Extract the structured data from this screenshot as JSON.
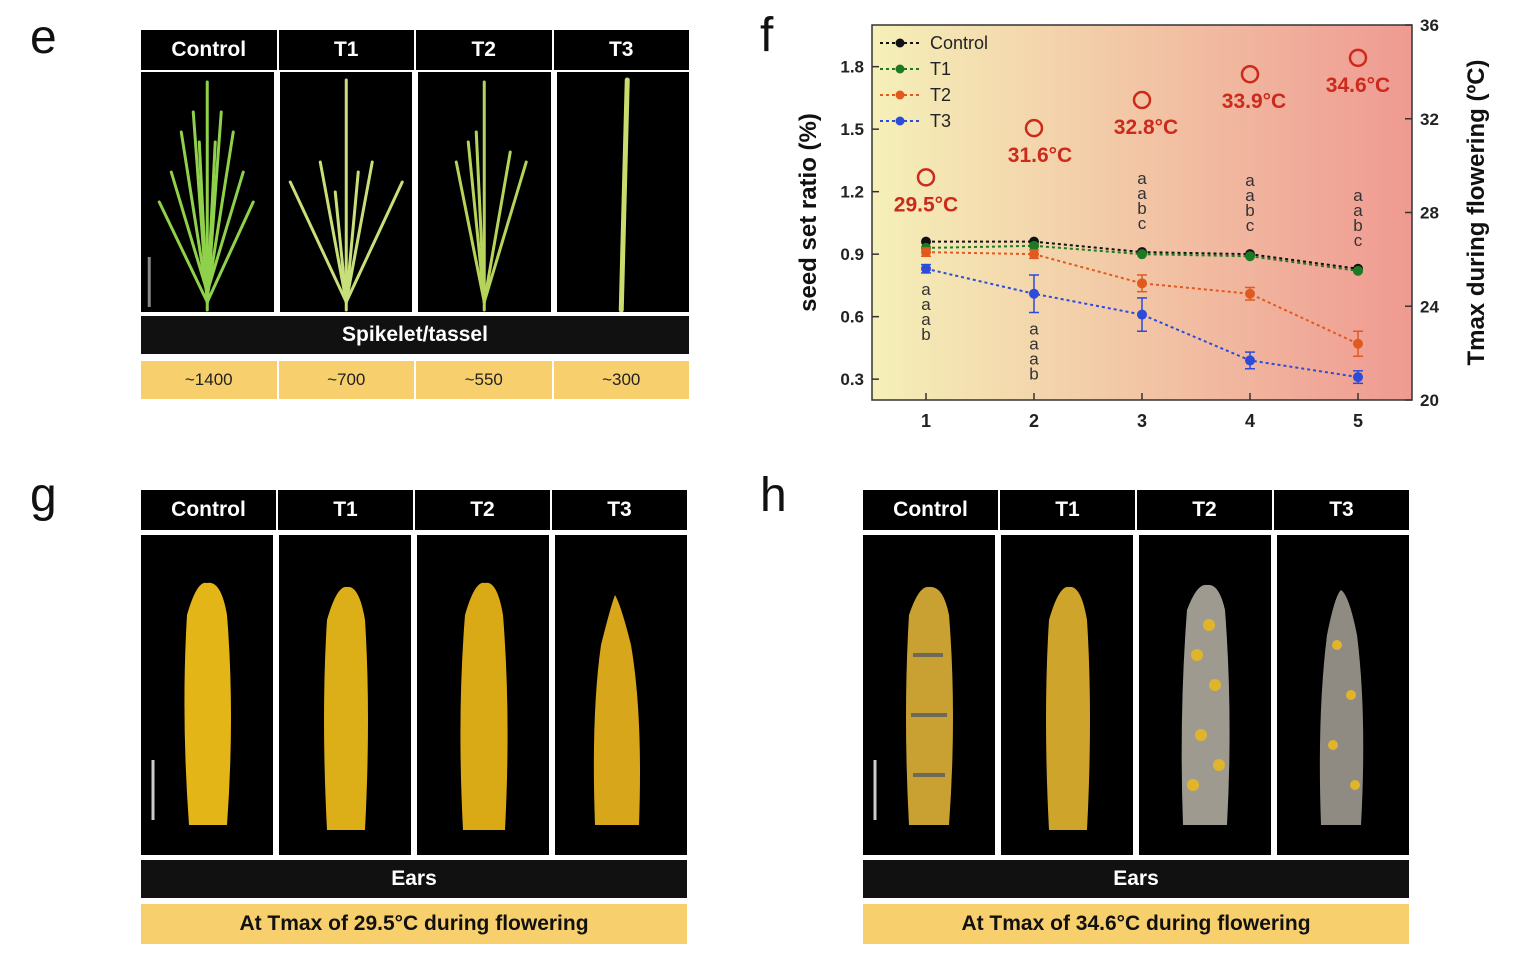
{
  "panels": {
    "e": {
      "label": "e",
      "headers": [
        "Control",
        "T1",
        "T2",
        "T3"
      ],
      "bar_label": "Spikelet/tassel",
      "counts": [
        "~1400",
        "~700",
        "~550",
        "~300"
      ]
    },
    "f": {
      "label": "f"
    },
    "g": {
      "label": "g",
      "headers": [
        "Control",
        "T1",
        "T2",
        "T3"
      ],
      "bar_label": "Ears",
      "caption": "At Tmax of 29.5°C during flowering"
    },
    "h": {
      "label": "h",
      "headers": [
        "Control",
        "T1",
        "T2",
        "T3"
      ],
      "bar_label": "Ears",
      "caption": "At Tmax of 34.6°C during flowering"
    }
  },
  "chart_data": {
    "type": "line",
    "ylabel": "seed set ratio (%)",
    "y2label": "Tmax during flowering (ºC)",
    "xlabel": "",
    "x": [
      1,
      2,
      3,
      4,
      5
    ],
    "xlim": [
      0.5,
      5.5
    ],
    "ylim": [
      0.2,
      2.0
    ],
    "y2lim": [
      20,
      36
    ],
    "yticks": [
      "0.3",
      "0.6",
      "0.9",
      "1.2",
      "1.5",
      "1.8"
    ],
    "y2ticks": [
      "20",
      "24",
      "28",
      "32",
      "36"
    ],
    "xticks": [
      "1",
      "2",
      "3",
      "4",
      "5"
    ],
    "legend_position": "top-left",
    "series": [
      {
        "name": "Control",
        "color": "#111111",
        "values": [
          0.96,
          0.96,
          0.91,
          0.9,
          0.83
        ],
        "errors": [
          0.01,
          0.01,
          0.01,
          0.01,
          0.01
        ]
      },
      {
        "name": "T1",
        "color": "#1e7a22",
        "values": [
          0.93,
          0.94,
          0.9,
          0.89,
          0.82
        ],
        "errors": [
          0.01,
          0.01,
          0.01,
          0.01,
          0.01
        ]
      },
      {
        "name": "T2",
        "color": "#e05a1f",
        "values": [
          0.91,
          0.9,
          0.76,
          0.71,
          0.47
        ],
        "errors": [
          0.02,
          0.02,
          0.04,
          0.03,
          0.06
        ]
      },
      {
        "name": "T3",
        "color": "#2b4bd8",
        "values": [
          0.83,
          0.71,
          0.61,
          0.39,
          0.31
        ],
        "errors": [
          0.02,
          0.09,
          0.08,
          0.04,
          0.03
        ]
      }
    ],
    "tmax": {
      "values": [
        29.5,
        31.6,
        32.8,
        33.9,
        34.6
      ],
      "labels": [
        "29.5°C",
        "31.6°C",
        "32.8°C",
        "33.9°C",
        "34.6°C"
      ],
      "color": "#cc2a1c"
    },
    "significance": [
      {
        "x": 1,
        "letters": [
          "a",
          "a",
          "a",
          "b"
        ],
        "position": "below"
      },
      {
        "x": 2,
        "letters": [
          "a",
          "a",
          "a",
          "b"
        ],
        "position": "below"
      },
      {
        "x": 3,
        "letters": [
          "a",
          "a",
          "b",
          "c"
        ],
        "position": "above"
      },
      {
        "x": 4,
        "letters": [
          "a",
          "a",
          "b",
          "c"
        ],
        "position": "above"
      },
      {
        "x": 5,
        "letters": [
          "a",
          "a",
          "b",
          "c"
        ],
        "position": "above"
      }
    ],
    "background_gradient": [
      "#f5f0b8",
      "#ef9a92"
    ]
  }
}
